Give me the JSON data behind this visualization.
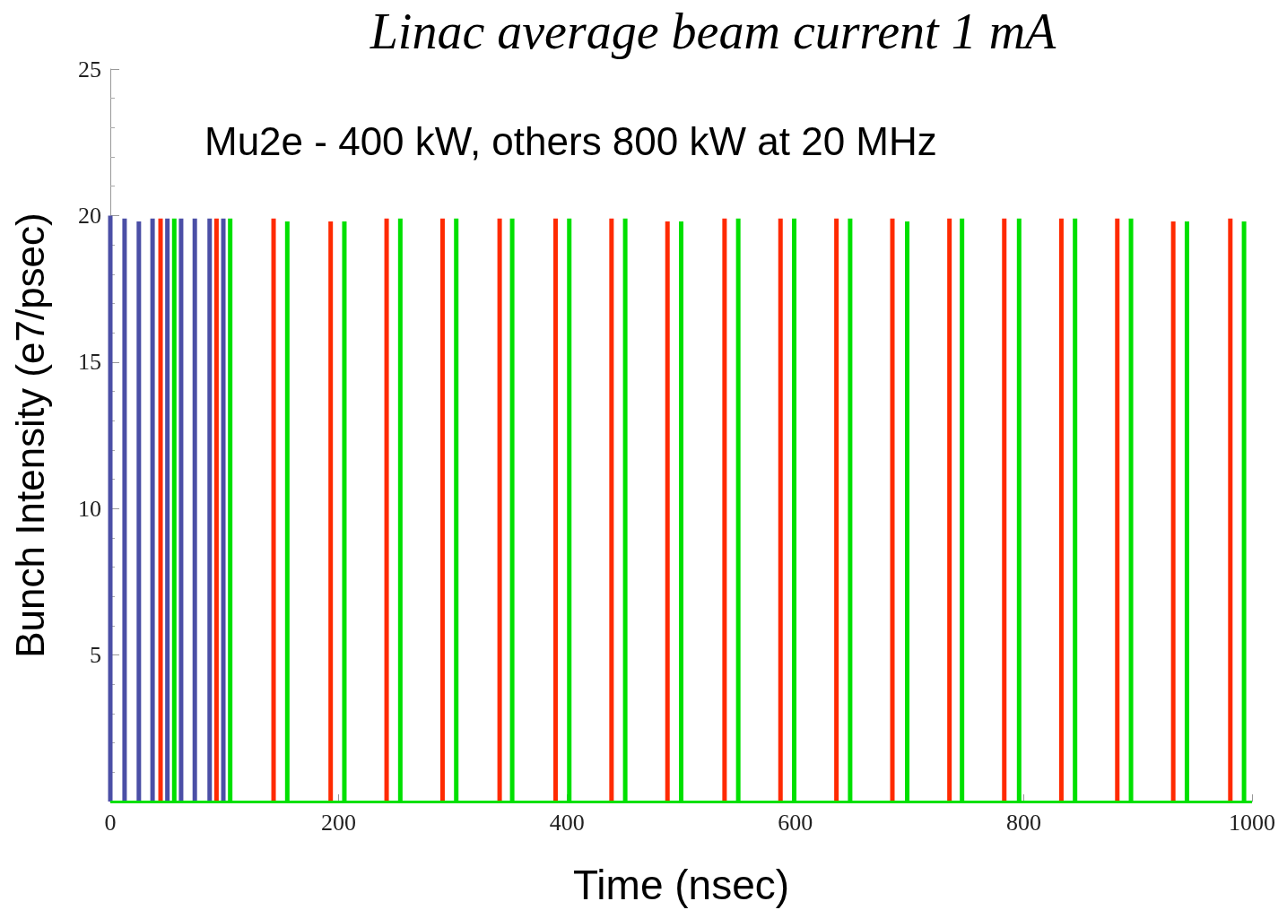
{
  "chart_data": {
    "type": "bar",
    "title": "Linac average beam current 1 mA",
    "xlabel": "Time (nsec)",
    "ylabel": "Bunch Intensity (e7/psec)",
    "annotations": [
      "Mu2e - 400 kW, others 800 kW at 20 MHz"
    ],
    "xlim": [
      0,
      1000
    ],
    "xticks": [
      0,
      200,
      400,
      600,
      800,
      1000
    ],
    "ylim": [
      0,
      25
    ],
    "yticks": [
      {
        "value": 0,
        "label": null
      },
      5,
      10,
      15,
      20,
      25
    ],
    "ref_lines": [
      {
        "axis": "y",
        "value": 0,
        "color": "#00e000"
      }
    ],
    "series": [
      {
        "color": "#4b4fa6",
        "x": [
          0,
          12.5,
          25,
          37,
          50,
          62,
          74,
          87,
          99
        ],
        "values": [
          20,
          19.9,
          19.8,
          19.9,
          19.9,
          19.9,
          19.9,
          19.9,
          19.9
        ]
      },
      {
        "color": "#ff2a00",
        "x": [
          44,
          93,
          143,
          193,
          242,
          291,
          341,
          390,
          439,
          488,
          538,
          587,
          636,
          685,
          735,
          783,
          833,
          882,
          931,
          981
        ],
        "values": [
          19.9,
          19.9,
          19.9,
          19.8,
          19.9,
          19.9,
          19.9,
          19.9,
          19.9,
          19.8,
          19.9,
          19.9,
          19.9,
          19.9,
          19.9,
          19.9,
          19.9,
          19.9,
          19.8,
          19.9
        ]
      },
      {
        "color": "#00e000",
        "x": [
          56,
          105,
          155,
          205,
          254,
          303,
          352,
          402,
          451,
          500,
          550,
          599,
          648,
          698,
          746,
          796,
          845,
          894,
          943,
          993
        ],
        "values": [
          19.9,
          19.9,
          19.8,
          19.8,
          19.9,
          19.9,
          19.9,
          19.9,
          19.9,
          19.8,
          19.9,
          19.9,
          19.9,
          19.8,
          19.9,
          19.9,
          19.9,
          19.9,
          19.8,
          19.8
        ]
      }
    ]
  }
}
